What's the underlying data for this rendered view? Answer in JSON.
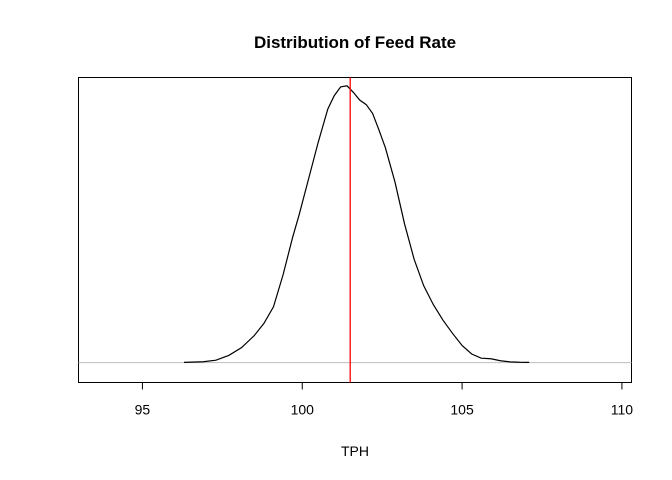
{
  "chart_data": {
    "type": "line",
    "title": "Distribution of Feed Rate",
    "xlabel": "TPH",
    "ylabel": "",
    "xlim": [
      93,
      110.3
    ],
    "ylim": [
      -0.018,
      0.258
    ],
    "x_ticks": [
      95,
      100,
      105,
      110
    ],
    "x_tick_labels": [
      "95",
      "100",
      "105",
      "110"
    ],
    "y_axis_shown": false,
    "grid": false,
    "legend": "none",
    "baseline": {
      "y": 0,
      "color": "#bebebe"
    },
    "vline": {
      "x": 101.5,
      "color": "#ff0000"
    },
    "series": [
      {
        "color": "#000000",
        "x": [
          96.3,
          96.9,
          97.3,
          97.7,
          98.1,
          98.5,
          98.8,
          99.1,
          99.4,
          99.7,
          99.9,
          100.2,
          100.5,
          100.8,
          101.0,
          101.2,
          101.4,
          101.6,
          101.8,
          102.0,
          102.2,
          102.4,
          102.6,
          102.9,
          103.2,
          103.5,
          103.8,
          104.1,
          104.4,
          104.7,
          105.0,
          105.3,
          105.6,
          105.9,
          106.2,
          106.5,
          106.8,
          107.1
        ],
        "y": [
          0.0002,
          0.0008,
          0.0022,
          0.0065,
          0.0135,
          0.0245,
          0.0355,
          0.0505,
          0.0795,
          0.1135,
          0.1335,
          0.1665,
          0.1995,
          0.2295,
          0.2415,
          0.2495,
          0.2505,
          0.2445,
          0.2375,
          0.2335,
          0.2255,
          0.2105,
          0.1945,
          0.1635,
          0.1255,
          0.0935,
          0.0695,
          0.0525,
          0.0385,
          0.0265,
          0.0155,
          0.0078,
          0.004,
          0.0035,
          0.0017,
          0.0007,
          0.0003,
          0.0002
        ]
      }
    ]
  }
}
